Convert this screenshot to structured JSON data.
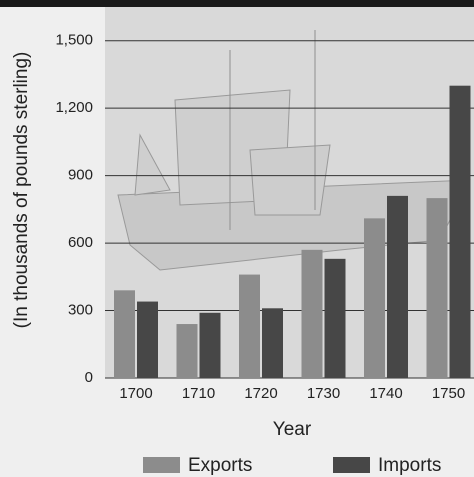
{
  "chart_data": {
    "type": "bar",
    "y_label": "(In thousands of pounds sterling)",
    "x_label": "Year",
    "categories": [
      "1700",
      "1710",
      "1720",
      "1730",
      "1740",
      "1750"
    ],
    "series": [
      {
        "name": "Exports",
        "color": "#8c8c8c",
        "values": [
          390,
          240,
          460,
          570,
          710,
          800
        ]
      },
      {
        "name": "Imports",
        "color": "#474747",
        "values": [
          340,
          290,
          310,
          530,
          810,
          1300
        ]
      }
    ],
    "ylim": [
      0,
      1650
    ],
    "yticks": [
      0,
      300,
      600,
      900,
      {
        "value": 1200,
        "label": "1,200"
      },
      {
        "value": 1500,
        "label": "1,500"
      }
    ],
    "grid": true
  }
}
